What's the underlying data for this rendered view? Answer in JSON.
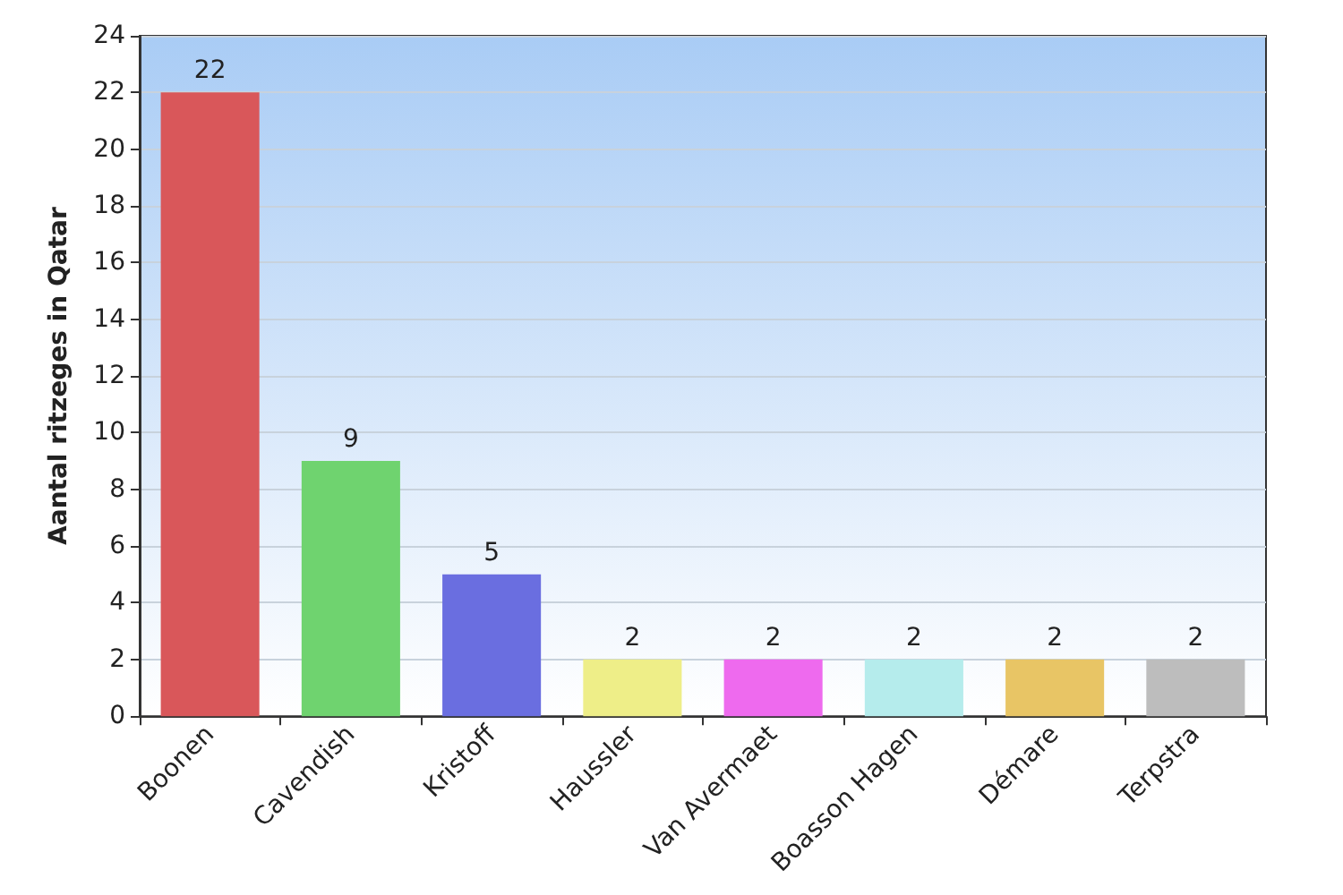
{
  "chart_data": {
    "type": "bar",
    "ylabel": "Aantal ritzeges in Qatar",
    "categories": [
      "Boonen",
      "Cavendish",
      "Kristoff",
      "Haussler",
      "Van Avermaet",
      "Boasson Hagen",
      "Démare",
      "Terpstra"
    ],
    "values": [
      22,
      9,
      5,
      2,
      2,
      2,
      2,
      2
    ],
    "colors": [
      "#d9575a",
      "#6fd36f",
      "#6a6ee0",
      "#eeee88",
      "#ee6aee",
      "#b5ecec",
      "#e8c565",
      "#bdbdbd"
    ],
    "ylim": [
      0,
      24
    ],
    "yticks": [
      0,
      2,
      4,
      6,
      8,
      10,
      12,
      14,
      16,
      18,
      20,
      22,
      24
    ],
    "grid": "y",
    "data_labels": true
  }
}
